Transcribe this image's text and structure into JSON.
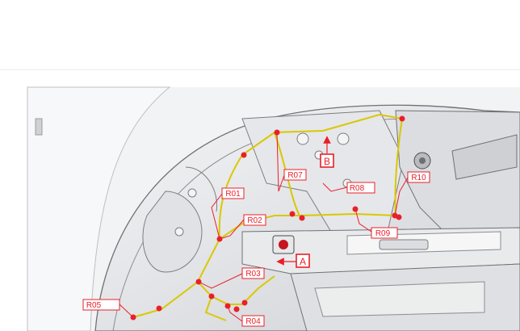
{
  "diagram": {
    "callouts": {
      "r01": "R01",
      "r02": "R02",
      "r03": "R03",
      "r04": "R04",
      "r05": "R05",
      "r07": "R07",
      "r08": "R08",
      "r09": "R09",
      "r10": "R10"
    },
    "view_markers": {
      "a": "A",
      "b": "B"
    },
    "colors": {
      "callout_red": "#e8202a",
      "harness_yellow": "#d9c800",
      "panel_grey": "#d9dadd",
      "outline_dark": "#3a3a3a"
    }
  }
}
